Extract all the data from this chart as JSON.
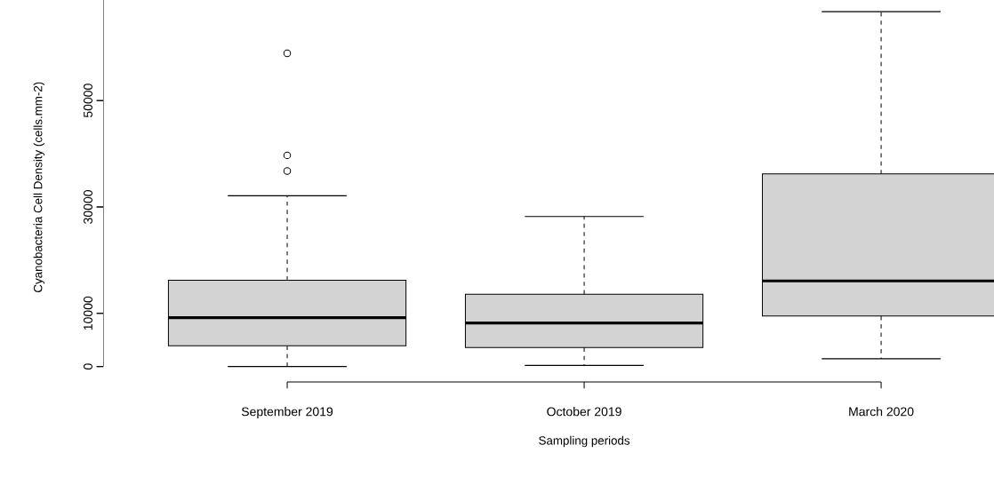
{
  "chart_data": {
    "type": "box",
    "xlabel": "Sampling periods",
    "ylabel": "Cyanobacteria Cell Density (cells.mm-2)",
    "categories": [
      "September 2019",
      "October 2019",
      "March 2020"
    ],
    "color": "#d3d3d3",
    "boxes": [
      {
        "low": 0,
        "q1": 3900,
        "median": 9200,
        "q3": 16200,
        "high": 32100,
        "outliers": [
          36750,
          39700,
          58900
        ]
      },
      {
        "low": 200,
        "q1": 3550,
        "median": 8200,
        "q3": 13600,
        "high": 28200
      },
      {
        "low": 1450,
        "q1": 9500,
        "median": 16100,
        "q3": 36200,
        "high": 66700
      }
    ],
    "ylim": [
      -2900,
      68900
    ],
    "yticks": [
      0,
      10000,
      30000,
      50000
    ]
  }
}
